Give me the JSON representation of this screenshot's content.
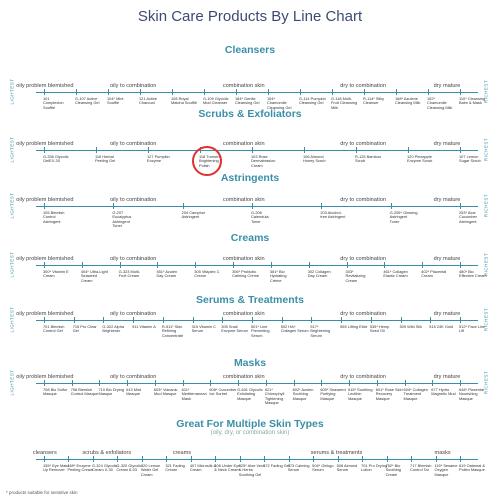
{
  "header": {
    "title": "Skin Care Products By Line Chart"
  },
  "sections": [
    {
      "title": "Cleansers",
      "left": "LIGHTEST",
      "right": "RICHEST",
      "zones": [
        "oily problem blemished",
        "oily to combination",
        "combination skin",
        "dry to combination",
        "dry mature"
      ],
      "products": [
        "101 Complexion Soufflé",
        "G-107 Active Cleansing Gel",
        "104* Mint Soufflé",
        "121 Active Charcoal",
        "108 Royal Matcha Soufflé",
        "G-109 Glycolic Mud Cleanser",
        "184* Gentle Cleansing Gel",
        "154* Chamomile Cleansing Gel",
        "G-114 Pumpkin Cleansing Gel",
        "G-118 Multi-Fruit Cleansing Milk",
        "R-114* Silky Cleanser",
        "168* Azulene Cleansing Milk",
        "152* Chamomile Cleansing Milk",
        "110* Cleansing Balm & Mask"
      ]
    },
    {
      "title": "Scrubs & Exfoliators",
      "left": "LIGHTEST",
      "right": "RICHEST",
      "zones": [
        "oily problem blemished",
        "oily to combination",
        "combination skin",
        "dry to combination",
        "dry mature"
      ],
      "products": [
        "G-336 Glycolic GelEX-30",
        "116 Herbal Peeling Gel",
        "127 Pumpkin Enzyme",
        "118 Turmeric Brightening Polish",
        "103 Rose Dermabrasion Cream",
        "106 Almond Honey Scrub",
        "R-125 Bamboo Scrub",
        "120 Pineapple Enzyme Scrub",
        "107 Lemon Sugar Scrub"
      ]
    },
    {
      "title": "Astringents",
      "left": "LIGHTEST",
      "right": "RICHEST",
      "zones": [
        "oily problem blemished",
        "oily to combination",
        "combination skin",
        "dry to combination",
        "dry mature"
      ],
      "products": [
        "105 Blemish Control Astringent",
        "G-207 Eucalyptus Astringent Toner",
        "204 Camphor Astringent",
        "G-206 Calendula Toner",
        "203 Alcohol-free Astringent",
        "G-205* Ginseng Astringent Toner",
        "253* Aloe Cucumber Astringent"
      ]
    },
    {
      "title": "Creams",
      "left": "LIGHTEST",
      "right": "RICHEST",
      "zones": [
        "oily problem blemished",
        "oily to combination",
        "combination skin",
        "dry to combination",
        "dry mature"
      ],
      "products": [
        "300* Vitamin E Cream",
        "404* Ultra-Light Seaweed Cream",
        "G-323 Multi-Fruit Cream",
        "451* Azulen Day Cream",
        "305 Vitaplex C Cream",
        "306* Probiotic Calming Crème",
        "361* Bio Hydrating Crème",
        "302 Collagen Day Cream",
        "303* Revitalizing Cream",
        "461* Collagen Elastic Cream",
        "402* Placental Cream",
        "480* Bio Effective Cream"
      ]
    },
    {
      "title": "Serums & Treatments",
      "left": "LIGHTEST",
      "right": "RICHEST",
      "zones": [
        "oily problem blemished",
        "oily to combination",
        "combination skin",
        "dry to combination",
        "dry mature"
      ],
      "products": [
        "701 Blemish Control Gel",
        "715 Pro Clear Gel",
        "G-322 Alpha Brightener",
        "911 Vitamin A",
        "R-511* Skin Refining Concentrate",
        "315 Vitamin C Serum",
        "305 Snail Enzyme Serum",
        "501* Line Preventing Serum",
        "502 HA+ Collagen Serum",
        "517* Brightening Serum",
        "555 Lifting Elixir",
        "535* Hemp Seed Oil",
        "509 Wild Silk",
        "515 24K Gold",
        "512* Face Line Lift"
      ]
    },
    {
      "title": "Masks",
      "left": "LIGHTEST",
      "right": "RICHEST",
      "zones": [
        "oily problem blemished",
        "oily to combination",
        "combination skin",
        "dry to combination",
        "dry mature"
      ],
      "products": [
        "708 Bio Sulfur Masque",
        "706 Blemish Control Masque",
        "710 Bio Drying Masque",
        "613 Mint Masque",
        "603* Volcanic Mud Masque",
        "611* Mediterranean Mask",
        "608* Cucumber Ice Sorbet",
        "G-631 Glycolic Exfoliating Masque",
        "621* Chlorophyll Tightening Masque",
        "602* Azulen Soothing Masque",
        "609* Seaweed Purifying Masque",
        "615* Soothing Lecithin Masque",
        "601* Rose Skin Recovery Masque",
        "604* Collagen Treatment Masque",
        "677 Hydro Magnetic Mud",
        "648* Placental Nourishing Masque"
      ]
    },
    {
      "title": "Great For Multiple Skin Types",
      "subtitle": "(oily, dry, or combination skin)",
      "zones": [
        "cleansers",
        "scrubs & exfoliators",
        "creams",
        "serums & treatments",
        "masks"
      ],
      "products": [
        "155* Eye Make Up Remover",
        "169* Enzyme Peeling Cream",
        "G-324 Glycolic Cream X-30",
        "G-320 Glycolic Cream 6-03",
        "320 Lemon Water Gel Cream",
        "321 Fading Cream",
        "407 Microsilk C Cream",
        "408 Under Eye & Neck Cream",
        "325* Aloe Vera & Herbs Soothing Gel",
        "372 Fading Gel",
        "373 Calming Serum",
        "504* Ginkgo Serum",
        "508 Almond Serum",
        "701 Pro Drying Lotion",
        "752* Bio Soothing Cream",
        "717 Blemish Control Tai",
        "115* Sesame Oxygen Masque",
        "619 Oatmeal & Pollen Masque"
      ]
    }
  ],
  "footnote": "* products suitable for sensitive skin"
}
